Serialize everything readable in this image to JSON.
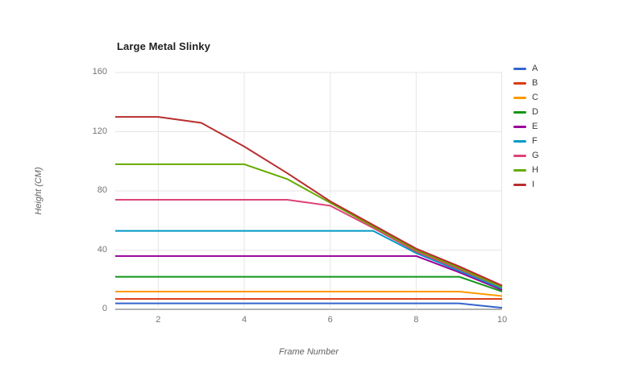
{
  "chart_data": {
    "type": "line",
    "title": "Large Metal Slinky",
    "xlabel": "Frame Number",
    "ylabel": "Height (CM)",
    "x": [
      1,
      2,
      3,
      4,
      5,
      6,
      7,
      8,
      9,
      10
    ],
    "xlim": [
      1,
      10
    ],
    "ylim": [
      0,
      160
    ],
    "x_ticks": [
      2,
      4,
      6,
      8,
      10
    ],
    "y_ticks": [
      0,
      40,
      80,
      120,
      160
    ],
    "grid": true,
    "legend_position": "right",
    "series": [
      {
        "name": "A",
        "color": "#3366cc",
        "values": [
          4,
          4,
          4,
          4,
          4,
          4,
          4,
          4,
          4,
          1
        ]
      },
      {
        "name": "B",
        "color": "#dc3912",
        "values": [
          7,
          7,
          7,
          7,
          7,
          7,
          7,
          7,
          7,
          7
        ]
      },
      {
        "name": "C",
        "color": "#ff9900",
        "values": [
          12,
          12,
          12,
          12,
          12,
          12,
          12,
          12,
          12,
          9
        ]
      },
      {
        "name": "D",
        "color": "#109618",
        "values": [
          22,
          22,
          22,
          22,
          22,
          22,
          22,
          22,
          22,
          12
        ]
      },
      {
        "name": "E",
        "color": "#990099",
        "values": [
          36,
          36,
          36,
          36,
          36,
          36,
          36,
          36,
          25,
          13
        ]
      },
      {
        "name": "F",
        "color": "#0099c6",
        "values": [
          53,
          53,
          53,
          53,
          53,
          53,
          53,
          38,
          26,
          14
        ]
      },
      {
        "name": "G",
        "color": "#dd4477",
        "values": [
          74,
          74,
          74,
          74,
          74,
          70,
          55,
          39,
          27,
          15
        ]
      },
      {
        "name": "H",
        "color": "#66aa00",
        "values": [
          98,
          98,
          98,
          98,
          88,
          72,
          56,
          40,
          28,
          15
        ]
      },
      {
        "name": "I",
        "color": "#b82e2e",
        "values": [
          130,
          130,
          126,
          110,
          92,
          73,
          57,
          41,
          29,
          16
        ]
      }
    ],
    "style": {
      "grid_color": "#e6e6e6",
      "axis_line_color": "#999999",
      "tick_label_color": "#757575",
      "title_color": "#212121",
      "axis_title_color": "#616161",
      "legend_label_color": "#3c3c3c",
      "background": "#ffffff"
    }
  }
}
